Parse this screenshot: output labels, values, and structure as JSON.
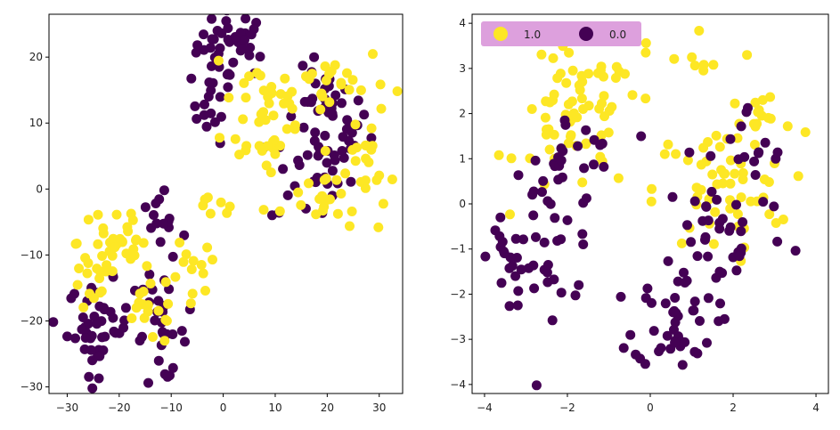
{
  "colors": {
    "class_1": "#fde725",
    "class_0": "#440154",
    "legend_bg": "#dda0dd",
    "axis": "#000000"
  },
  "chart_data": [
    {
      "type": "scatter",
      "title": "",
      "xlabel": "",
      "ylabel": "",
      "xlim": [
        -33.5,
        34.5
      ],
      "ylim": [
        -31,
        26.5
      ],
      "xticks": [
        -30,
        -20,
        -10,
        0,
        10,
        20,
        30
      ],
      "yticks": [
        -30,
        -20,
        -10,
        0,
        10,
        20
      ],
      "xtick_labels": [
        "−30",
        "−20",
        "−10",
        "0",
        "10",
        "20",
        "30"
      ],
      "ytick_labels": [
        "−30",
        "−20",
        "−10",
        "0",
        "10",
        "20"
      ],
      "clusters": [
        {
          "label": "0.0",
          "cx": 2,
          "cy": 22,
          "sx": 3.5,
          "sy": 2.5,
          "n": 40
        },
        {
          "label": "0.0",
          "cx": -2,
          "cy": 13,
          "sx": 2,
          "sy": 3,
          "n": 18
        },
        {
          "label": "0.0",
          "cx": 20,
          "cy": 10,
          "sx": 4,
          "sy": 4,
          "n": 45
        },
        {
          "label": "0.0",
          "cx": 17,
          "cy": 2,
          "sx": 4,
          "sy": 4,
          "n": 25
        },
        {
          "label": "1.0",
          "cx": 8,
          "cy": 12,
          "sx": 4,
          "sy": 5,
          "n": 35
        },
        {
          "label": "1.0",
          "cx": 20,
          "cy": 16,
          "sx": 6,
          "sy": 3,
          "n": 30
        },
        {
          "label": "1.0",
          "cx": 20,
          "cy": -1,
          "sx": 6,
          "sy": 3,
          "n": 30
        },
        {
          "label": "1.0",
          "cx": 28,
          "cy": 4,
          "sx": 3,
          "sy": 3,
          "n": 12
        },
        {
          "label": "1.0",
          "cx": -1,
          "cy": 0,
          "sx": 2,
          "sy": 3,
          "n": 8
        },
        {
          "label": "0.0",
          "cx": -24,
          "cy": -21,
          "sx": 3,
          "sy": 3.5,
          "n": 45
        },
        {
          "label": "0.0",
          "cx": -12,
          "cy": -22,
          "sx": 2.5,
          "sy": 3.5,
          "n": 25
        },
        {
          "label": "0.0",
          "cx": -12,
          "cy": -8,
          "sx": 2.5,
          "sy": 4,
          "n": 18
        },
        {
          "label": "1.0",
          "cx": -21,
          "cy": -8,
          "sx": 3.5,
          "sy": 4,
          "n": 35
        },
        {
          "label": "1.0",
          "cx": -14,
          "cy": -18,
          "sx": 3,
          "sy": 3,
          "n": 20
        },
        {
          "label": "1.0",
          "cx": -6,
          "cy": -14,
          "sx": 2.5,
          "sy": 4,
          "n": 12
        },
        {
          "label": "1.0",
          "cx": -25,
          "cy": -15,
          "sx": 2,
          "sy": 2,
          "n": 10
        }
      ]
    },
    {
      "type": "scatter",
      "title": "",
      "xlabel": "",
      "ylabel": "",
      "xlim": [
        -4.3,
        4.3
      ],
      "ylim": [
        -4.2,
        4.2
      ],
      "xticks": [
        -4,
        -2,
        0,
        2,
        4
      ],
      "yticks": [
        -4,
        -3,
        -2,
        -1,
        0,
        1,
        2,
        3,
        4
      ],
      "xtick_labels": [
        "−4",
        "−2",
        "0",
        "2",
        "4"
      ],
      "ytick_labels": [
        "−4",
        "−3",
        "−2",
        "−1",
        "0",
        "1",
        "2",
        "3",
        "4"
      ],
      "legend": {
        "position": "upper-left",
        "entries": [
          {
            "label": "1.0",
            "color": "#fde725"
          },
          {
            "label": "0.0",
            "color": "#440154"
          }
        ]
      },
      "clusters": [
        {
          "label": "1.0",
          "cx": -1.8,
          "cy": 1.8,
          "sx": 0.7,
          "sy": 0.8,
          "n": 55
        },
        {
          "label": "1.0",
          "cx": -1.2,
          "cy": 2.8,
          "sx": 0.5,
          "sy": 0.5,
          "n": 15
        },
        {
          "label": "0.0",
          "cx": -2.4,
          "cy": -0.4,
          "sx": 0.6,
          "sy": 0.9,
          "n": 45
        },
        {
          "label": "0.0",
          "cx": -3.4,
          "cy": -1.2,
          "sx": 0.25,
          "sy": 0.4,
          "n": 15
        },
        {
          "label": "0.0",
          "cx": -1.8,
          "cy": 1.1,
          "sx": 0.5,
          "sy": 0.5,
          "n": 12
        },
        {
          "label": "1.0",
          "cx": 1.7,
          "cy": 0.3,
          "sx": 0.8,
          "sy": 0.7,
          "n": 55
        },
        {
          "label": "1.0",
          "cx": 2.7,
          "cy": 1.8,
          "sx": 0.6,
          "sy": 0.5,
          "n": 15
        },
        {
          "label": "1.0",
          "cx": 0.8,
          "cy": 3.3,
          "sx": 0.9,
          "sy": 0.4,
          "n": 10
        },
        {
          "label": "0.0",
          "cx": 1.8,
          "cy": -0.6,
          "sx": 0.8,
          "sy": 0.7,
          "n": 40
        },
        {
          "label": "0.0",
          "cx": 2.4,
          "cy": 1.0,
          "sx": 0.5,
          "sy": 0.6,
          "n": 15
        },
        {
          "label": "0.0",
          "cx": 0.6,
          "cy": -2.6,
          "sx": 0.5,
          "sy": 0.5,
          "n": 40
        }
      ]
    }
  ]
}
